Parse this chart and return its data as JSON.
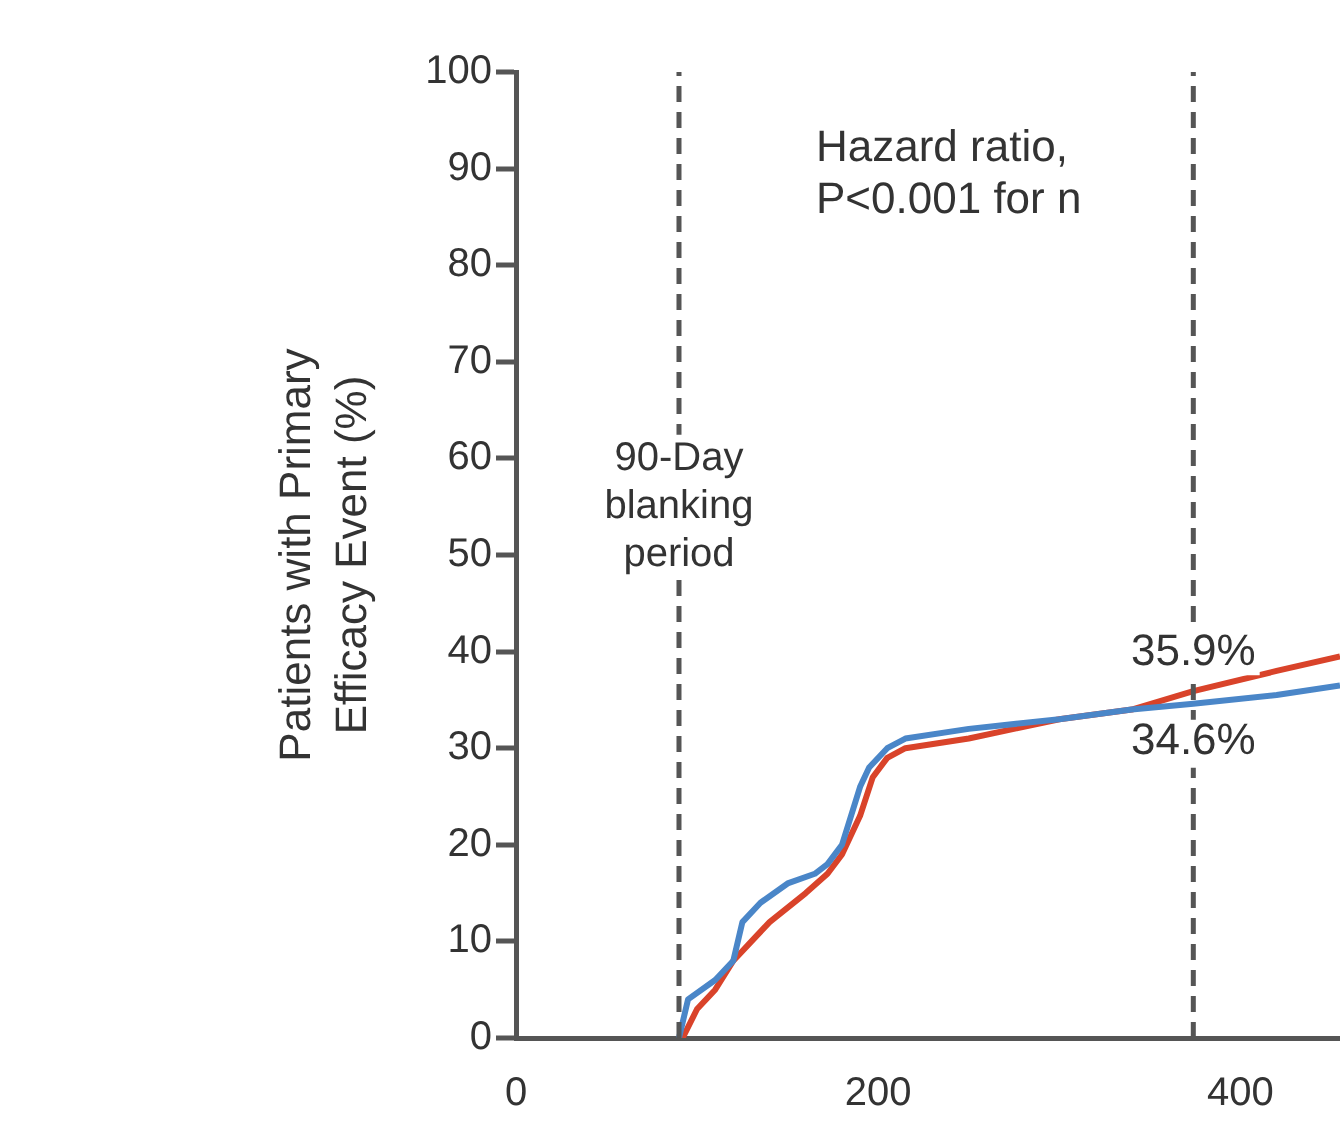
{
  "chart_data": {
    "type": "line",
    "ylabel": "Patients with Primary Efficacy Event (%)",
    "xlim": [
      0,
      455
    ],
    "xticks": [
      0,
      200,
      400
    ],
    "ylim": [
      0,
      100
    ],
    "yticks": [
      0,
      10,
      20,
      30,
      40,
      50,
      60,
      70,
      80,
      90,
      100
    ],
    "grid": false,
    "legend": false,
    "marker": "none",
    "line_style": "solid",
    "series": [
      {
        "color": "#4a86c8",
        "x": [
          90,
          95,
          110,
          120,
          125,
          135,
          150,
          165,
          172,
          180,
          190,
          195,
          205,
          215,
          250,
          300,
          340,
          374,
          420,
          455
        ],
        "values": [
          0,
          4,
          6,
          8,
          12,
          14,
          16,
          17,
          18,
          20,
          26,
          28,
          30,
          31,
          32,
          33,
          34,
          34.6,
          35.5,
          36.5
        ]
      },
      {
        "color": "#d9432a",
        "x": [
          92,
          100,
          110,
          120,
          130,
          140,
          160,
          172,
          180,
          190,
          197,
          205,
          215,
          250,
          300,
          340,
          374,
          420,
          455
        ],
        "values": [
          0,
          3,
          5,
          8,
          10,
          12,
          15,
          17,
          19,
          23,
          27,
          29,
          30,
          31,
          33,
          34,
          35.9,
          38,
          39.5
        ]
      }
    ],
    "ref_lines": [
      {
        "axis": "x",
        "value": 90,
        "label": "90-Day blanking period"
      },
      {
        "axis": "x",
        "value": 374
      }
    ],
    "annotations": [
      "Hazard ratio,",
      "P<0.001 for n",
      {
        "text": "35.9%",
        "x": 374,
        "y": 35.9
      },
      {
        "text": "34.6%",
        "x": 374,
        "y": 34.6
      }
    ]
  }
}
